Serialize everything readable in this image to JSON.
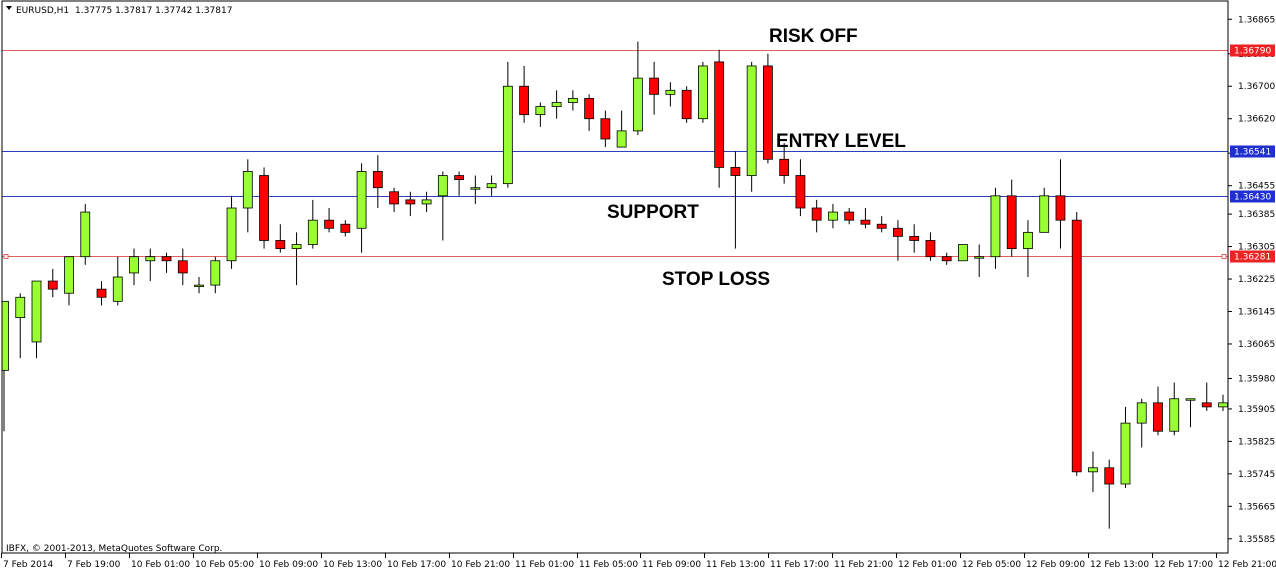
{
  "header": {
    "symbol": "EURUSD,H1",
    "ohlc": "1.37775 1.37817 1.37742 1.37817"
  },
  "footer": {
    "copyright": "IBFX, © 2001-2013, MetaQuotes Software Corp."
  },
  "colors": {
    "bull": "#99ff33",
    "bear": "#ff0000",
    "wick": "#000000",
    "support_line": "#2b3fbf",
    "risk_line": "#e06060"
  },
  "chart_data": {
    "type": "candlestick",
    "symbol": "EURUSD",
    "timeframe": "H1",
    "ylim": [
      1.3555,
      1.3691
    ],
    "y_ticks": [
      "1.36865",
      "1.36780",
      "1.36700",
      "1.36620",
      "1.36535",
      "1.36455",
      "1.36385",
      "1.36305",
      "1.36225",
      "1.36145",
      "1.36065",
      "1.35980",
      "1.35905",
      "1.35825",
      "1.35745",
      "1.35665",
      "1.35585"
    ],
    "x_ticks": [
      "7 Feb 2014",
      "7 Feb 19:00",
      "10 Feb 01:00",
      "10 Feb 05:00",
      "10 Feb 09:00",
      "10 Feb 13:00",
      "10 Feb 17:00",
      "10 Feb 21:00",
      "11 Feb 01:00",
      "11 Feb 05:00",
      "11 Feb 09:00",
      "11 Feb 13:00",
      "11 Feb 17:00",
      "11 Feb 21:00",
      "12 Feb 01:00",
      "12 Feb 05:00",
      "12 Feb 09:00",
      "12 Feb 13:00",
      "12 Feb 17:00",
      "12 Feb 21:00"
    ],
    "levels": [
      {
        "label": "1.36790",
        "value": 1.3679,
        "kind": "risk"
      },
      {
        "label": "1.36541",
        "value": 1.36541,
        "kind": "support"
      },
      {
        "label": "1.36430",
        "value": 1.3643,
        "kind": "support"
      },
      {
        "label": "1.36281",
        "value": 1.36281,
        "kind": "risk"
      }
    ],
    "annotations": [
      "RISK OFF",
      "ENTRY LEVEL",
      "SUPPORT",
      "STOP LOSS"
    ],
    "candles": [
      [
        1.36,
        1.3617,
        1.3585,
        1.3617
      ],
      [
        1.3613,
        1.3619,
        1.3603,
        1.3618
      ],
      [
        1.3607,
        1.3622,
        1.3603,
        1.3622
      ],
      [
        1.3622,
        1.3625,
        1.3618,
        1.362
      ],
      [
        1.3619,
        1.3628,
        1.3616,
        1.3628
      ],
      [
        1.3628,
        1.3641,
        1.3626,
        1.3639
      ],
      [
        1.362,
        1.3622,
        1.3616,
        1.3618
      ],
      [
        1.3617,
        1.3628,
        1.3616,
        1.3623
      ],
      [
        1.3624,
        1.363,
        1.3621,
        1.3628
      ],
      [
        1.3627,
        1.363,
        1.3622,
        1.3628
      ],
      [
        1.3628,
        1.3629,
        1.3624,
        1.3627
      ],
      [
        1.3627,
        1.363,
        1.3621,
        1.3624
      ],
      [
        1.3621,
        1.3623,
        1.3619,
        1.3621
      ],
      [
        1.3621,
        1.3628,
        1.3619,
        1.3627
      ],
      [
        1.3627,
        1.3643,
        1.3625,
        1.364
      ],
      [
        1.364,
        1.3652,
        1.3634,
        1.3649
      ],
      [
        1.3648,
        1.365,
        1.363,
        1.3632
      ],
      [
        1.3632,
        1.3636,
        1.3629,
        1.363
      ],
      [
        1.363,
        1.3634,
        1.3621,
        1.3631
      ],
      [
        1.3631,
        1.3642,
        1.363,
        1.3637
      ],
      [
        1.3637,
        1.364,
        1.3634,
        1.3635
      ],
      [
        1.3636,
        1.3637,
        1.3633,
        1.3634
      ],
      [
        1.3635,
        1.3651,
        1.3629,
        1.3649
      ],
      [
        1.3649,
        1.3653,
        1.364,
        1.3645
      ],
      [
        1.3644,
        1.3645,
        1.3639,
        1.3641
      ],
      [
        1.3642,
        1.3644,
        1.3638,
        1.3641
      ],
      [
        1.3641,
        1.3644,
        1.3639,
        1.3642
      ],
      [
        1.3643,
        1.3649,
        1.3632,
        1.3648
      ],
      [
        1.3648,
        1.3649,
        1.3643,
        1.3647
      ],
      [
        1.3645,
        1.3648,
        1.3641,
        1.3645
      ],
      [
        1.3645,
        1.3648,
        1.3643,
        1.3646
      ],
      [
        1.3646,
        1.3676,
        1.3645,
        1.367
      ],
      [
        1.367,
        1.3675,
        1.3661,
        1.3663
      ],
      [
        1.3663,
        1.3666,
        1.366,
        1.3665
      ],
      [
        1.3665,
        1.3669,
        1.3662,
        1.3666
      ],
      [
        1.3666,
        1.3669,
        1.3664,
        1.3667
      ],
      [
        1.3667,
        1.3668,
        1.3659,
        1.3662
      ],
      [
        1.3662,
        1.3664,
        1.3655,
        1.3657
      ],
      [
        1.3655,
        1.3664,
        1.3656,
        1.3659
      ],
      [
        1.3659,
        1.3681,
        1.3658,
        1.3672
      ],
      [
        1.3672,
        1.3676,
        1.3663,
        1.3668
      ],
      [
        1.3668,
        1.3671,
        1.3665,
        1.3669
      ],
      [
        1.3669,
        1.367,
        1.3661,
        1.3662
      ],
      [
        1.3662,
        1.3676,
        1.3661,
        1.3675
      ],
      [
        1.3676,
        1.3679,
        1.3645,
        1.365
      ],
      [
        1.365,
        1.3654,
        1.363,
        1.3648
      ],
      [
        1.3648,
        1.3676,
        1.3644,
        1.3675
      ],
      [
        1.3675,
        1.3678,
        1.3651,
        1.3652
      ],
      [
        1.3652,
        1.3656,
        1.3646,
        1.3648
      ],
      [
        1.3648,
        1.3652,
        1.3638,
        1.364
      ],
      [
        1.364,
        1.3642,
        1.3634,
        1.3637
      ],
      [
        1.3637,
        1.3641,
        1.3635,
        1.3639
      ],
      [
        1.3639,
        1.364,
        1.3636,
        1.3637
      ],
      [
        1.3637,
        1.364,
        1.3635,
        1.3636
      ],
      [
        1.3636,
        1.3638,
        1.3634,
        1.3635
      ],
      [
        1.3635,
        1.3637,
        1.3627,
        1.3633
      ],
      [
        1.3633,
        1.3636,
        1.3629,
        1.3632
      ],
      [
        1.3632,
        1.3634,
        1.3627,
        1.3628
      ],
      [
        1.3628,
        1.3629,
        1.3626,
        1.3627
      ],
      [
        1.3627,
        1.3631,
        1.3627,
        1.3631
      ],
      [
        1.3628,
        1.3631,
        1.3623,
        1.3628
      ],
      [
        1.3628,
        1.3645,
        1.3625,
        1.3643
      ],
      [
        1.3643,
        1.3647,
        1.3628,
        1.363
      ],
      [
        1.363,
        1.3637,
        1.3623,
        1.3634
      ],
      [
        1.3634,
        1.3645,
        1.3634,
        1.3643
      ],
      [
        1.3643,
        1.3652,
        1.363,
        1.3637
      ],
      [
        1.3637,
        1.3639,
        1.3574,
        1.3575
      ],
      [
        1.3575,
        1.358,
        1.357,
        1.3576
      ],
      [
        1.3576,
        1.3578,
        1.3561,
        1.3572
      ],
      [
        1.3572,
        1.3591,
        1.3571,
        1.3587
      ],
      [
        1.3587,
        1.3593,
        1.3581,
        1.3592
      ],
      [
        1.3592,
        1.3596,
        1.3584,
        1.3585
      ],
      [
        1.3585,
        1.3597,
        1.3584,
        1.3593
      ],
      [
        1.3593,
        1.3593,
        1.3586,
        1.3593
      ],
      [
        1.3592,
        1.3597,
        1.359,
        1.3591
      ],
      [
        1.3591,
        1.3594,
        1.359,
        1.3592
      ]
    ]
  }
}
